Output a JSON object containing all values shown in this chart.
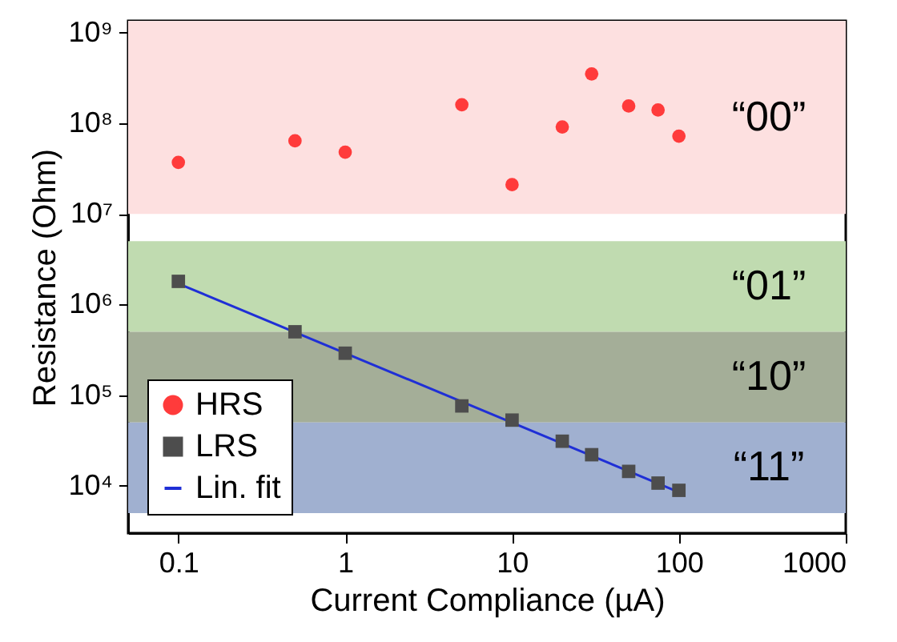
{
  "chart_data": {
    "type": "scatter",
    "xlabel": "Current Compliance (µA)",
    "ylabel": "Resistance (Ohm)",
    "log": "xy",
    "xlim": [
      0.05,
      1000
    ],
    "xticks": [
      0.1,
      1,
      10,
      100,
      1000
    ],
    "ylim": [
      3000,
      1350000000
    ],
    "yticks": [
      {
        "value": 10000,
        "label": "10⁴"
      },
      {
        "value": 100000,
        "label": "10⁵"
      },
      {
        "value": 1000000,
        "label": "10⁶"
      },
      {
        "value": 10000000,
        "label": "10⁷"
      },
      {
        "value": 100000000,
        "label": "10⁸"
      },
      {
        "value": 1000000000,
        "label": "10⁹"
      }
    ],
    "x": [
      0.1,
      0.5,
      1,
      5,
      10,
      20,
      30,
      50,
      75,
      100
    ],
    "series": [
      {
        "name": "HRS",
        "color": "#ff3b3b",
        "marker": "circle",
        "values": [
          37000000,
          64000000,
          48000000,
          160000000,
          21000000,
          91000000,
          350000000,
          155000000,
          140000000,
          72000000
        ]
      },
      {
        "name": "LRS",
        "color": "#4d4d4d",
        "marker": "square",
        "values": [
          1800000,
          500000,
          290000,
          76000,
          53000,
          31000,
          22000,
          14400,
          10700,
          8900
        ]
      },
      {
        "name": "Lin. fit",
        "type": "line",
        "color": "#1f2fd6",
        "marker": "none",
        "x": [
          0.1,
          100
        ],
        "values": [
          1700000,
          8500
        ]
      }
    ],
    "bands": [
      {
        "axis": "y",
        "from": 10000000,
        "to": 1350000000,
        "label": "“00”",
        "color": "#fde0e0"
      },
      {
        "axis": "y",
        "from": 500000,
        "to": 5000000,
        "label": "“01”",
        "color": "#c0dbb0"
      },
      {
        "axis": "y",
        "from": 50000,
        "to": 500000,
        "label": "“10”",
        "color": "#a4ae98"
      },
      {
        "axis": "y",
        "from": 5000,
        "to": 50000,
        "label": "“11”",
        "color": "#a0b0d0"
      }
    ],
    "legend": "bottom left"
  }
}
